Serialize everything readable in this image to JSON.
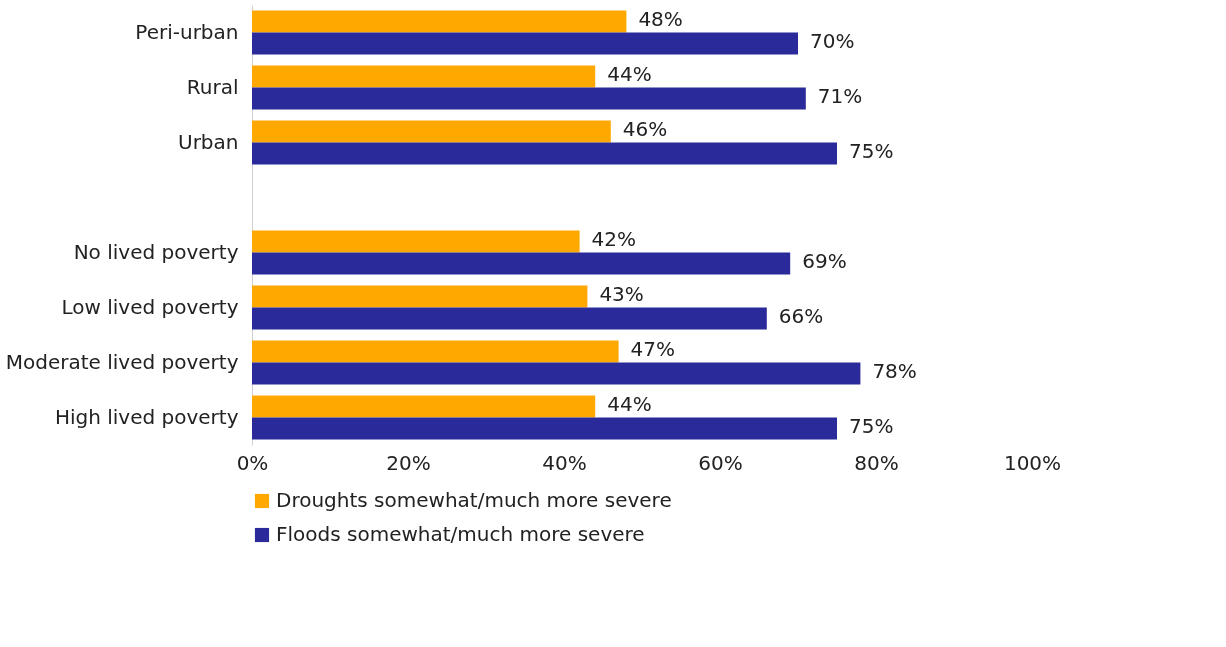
{
  "chart_data": {
    "type": "bar",
    "orientation": "horizontal",
    "categories": [
      "Peri-urban",
      "Rural",
      "Urban",
      null,
      "No lived poverty",
      "Low lived poverty",
      "Moderate lived poverty",
      "High lived poverty"
    ],
    "series": [
      {
        "name": "Droughts somewhat/much more severe",
        "color": "#ffa800",
        "values": [
          48,
          44,
          46,
          null,
          42,
          43,
          47,
          44
        ],
        "value_labels": [
          "48%",
          "44%",
          "46%",
          null,
          "42%",
          "43%",
          "47%",
          "44%"
        ]
      },
      {
        "name": "Floods somewhat/much more severe",
        "color": "#2a2a9a",
        "values": [
          70,
          71,
          75,
          null,
          69,
          66,
          78,
          75
        ],
        "value_labels": [
          "70%",
          "71%",
          "75%",
          null,
          "69%",
          "66%",
          "78%",
          "75%"
        ]
      }
    ],
    "xlim": [
      0,
      100
    ],
    "xticks": [
      {
        "value": 0,
        "label": "0%"
      },
      {
        "value": 20,
        "label": "20%"
      },
      {
        "value": 40,
        "label": "40%"
      },
      {
        "value": 60,
        "label": "60%"
      },
      {
        "value": 80,
        "label": "80%"
      },
      {
        "value": 100,
        "label": "100%"
      }
    ],
    "grid": false,
    "legend": "bottom"
  }
}
